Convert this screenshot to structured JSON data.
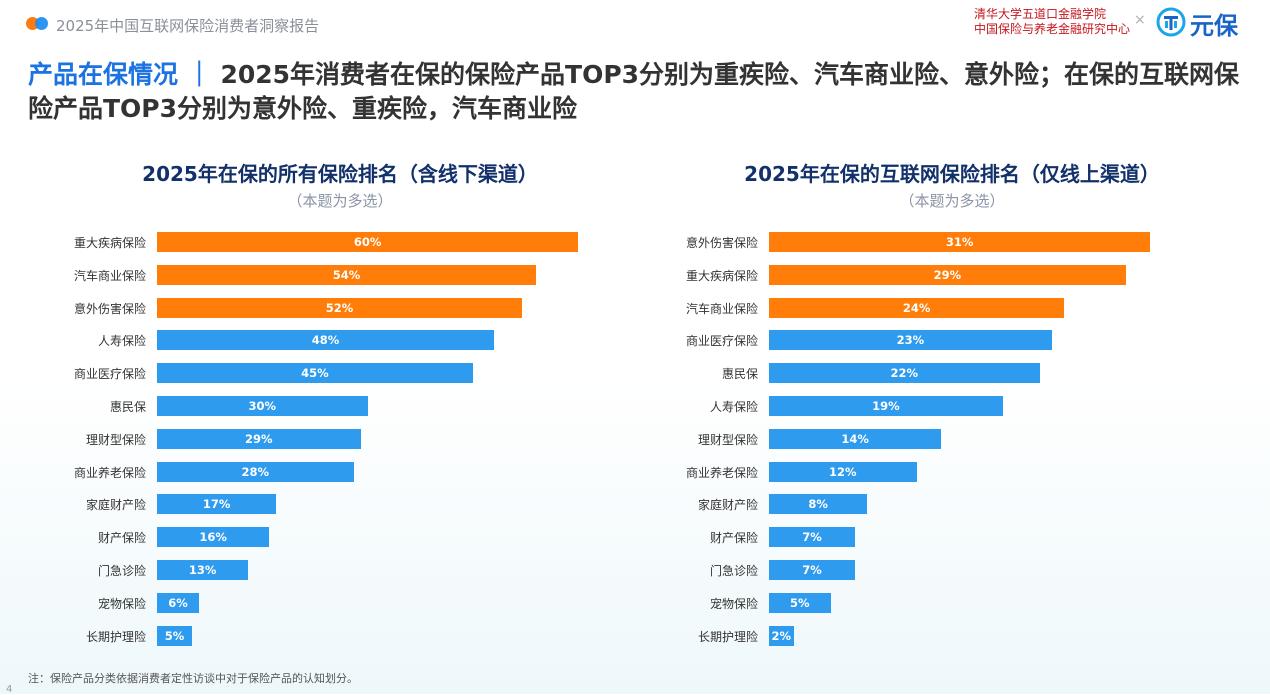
{
  "header": {
    "report_title": "2025年中国互联网保险消费者洞察报告",
    "institution_line1": "清华大学五道口金融学院",
    "institution_line2": "中国保险与养老金融研究中心",
    "separator": "×",
    "brand_name": "元保"
  },
  "headline": {
    "lead": "产品在保情况 ｜",
    "text": "2025年消费者在保的保险产品TOP3分别为重疾险、汽车商业险、意外险；在保的互联网保险产品TOP3分别为意外险、重疾险，汽车商业险"
  },
  "colors": {
    "top3": "#ff7d08",
    "other": "#2e9bef",
    "title_blue": "#1a73e0"
  },
  "chart_data": [
    {
      "type": "bar",
      "orientation": "horizontal",
      "title": "2025年在保的所有保险排名（含线下渠道）",
      "subtitle": "（本题为多选）",
      "categories": [
        "重大疾病保险",
        "汽车商业保险",
        "意外伤害保险",
        "人寿保险",
        "商业医疗保险",
        "惠民保",
        "理财型保险",
        "商业养老保险",
        "家庭财产险",
        "财产保险",
        "门急诊险",
        "宠物保险",
        "长期护理险"
      ],
      "values": [
        60,
        54,
        52,
        48,
        45,
        30,
        29,
        28,
        17,
        16,
        13,
        6,
        5
      ],
      "value_labels": [
        "60%",
        "54%",
        "52%",
        "48%",
        "45%",
        "30%",
        "29%",
        "28%",
        "17%",
        "16%",
        "13%",
        "6%",
        "5%"
      ],
      "unit": "%",
      "highlight_top": 3
    },
    {
      "type": "bar",
      "orientation": "horizontal",
      "title": "2025年在保的互联网保险排名（仅线上渠道）",
      "subtitle": "（本题为多选）",
      "categories": [
        "意外伤害保险",
        "重大疾病保险",
        "汽车商业保险",
        "商业医疗保险",
        "惠民保",
        "人寿保险",
        "理财型保险",
        "商业养老保险",
        "家庭财产险",
        "财产保险",
        "门急诊险",
        "宠物保险",
        "长期护理险"
      ],
      "values": [
        31,
        29,
        24,
        23,
        22,
        19,
        14,
        12,
        8,
        7,
        7,
        5,
        2
      ],
      "value_labels": [
        "31%",
        "29%",
        "24%",
        "23%",
        "22%",
        "19%",
        "14%",
        "12%",
        "8%",
        "7%",
        "7%",
        "5%",
        "2%"
      ],
      "unit": "%",
      "highlight_top": 3
    }
  ],
  "note": "注：保险产品分类依据消费者定性访谈中对于保险产品的认知划分。",
  "page_number": "4"
}
